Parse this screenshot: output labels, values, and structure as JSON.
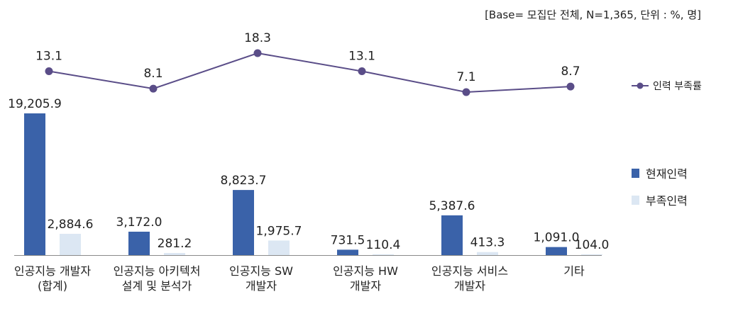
{
  "base_note": "[Base= 모집단 전체, N=1,365, 단위 : %, 명]",
  "colors": {
    "current": "#3a62a9",
    "shortage_bar": "#dce7f3",
    "shortage_line": "#5a4d88",
    "axis": "#8a8a8a",
    "text": "#222222"
  },
  "chart_data": {
    "type": "bar",
    "categories": [
      [
        "인공지능 개발자",
        "(합계)"
      ],
      [
        "인공지능 아키텍처",
        "설계 및 분석가"
      ],
      [
        "인공지능 SW",
        "개발자"
      ],
      [
        "인공지능 HW",
        "개발자"
      ],
      [
        "인공지능 서비스",
        "개발자"
      ],
      [
        "기타"
      ]
    ],
    "series": [
      {
        "name": "현재인력",
        "values": [
          19205.9,
          3172.0,
          8823.7,
          731.5,
          5387.6,
          1091.0
        ],
        "labels": [
          "19,205.9",
          "3,172.0",
          "8,823.7",
          "731.5",
          "5,387.6",
          "1,091.0"
        ]
      },
      {
        "name": "부족인력",
        "values": [
          2884.6,
          281.2,
          1975.7,
          110.4,
          413.3,
          104.0
        ],
        "labels": [
          "2,884.6",
          "281.2",
          "1,975.7",
          "110.4",
          "413.3",
          "104.0"
        ]
      }
    ],
    "line_series": {
      "name": "인력 부족률",
      "values": [
        13.1,
        8.1,
        18.3,
        13.1,
        7.1,
        8.7
      ],
      "labels": [
        "13.1",
        "8.1",
        "18.3",
        "13.1",
        "7.1",
        "8.7"
      ]
    },
    "bar_ylim": [
      0,
      19205.9
    ],
    "line_ylim": [
      7.1,
      18.3
    ],
    "legend": {
      "placement": "right"
    },
    "grid": false
  }
}
